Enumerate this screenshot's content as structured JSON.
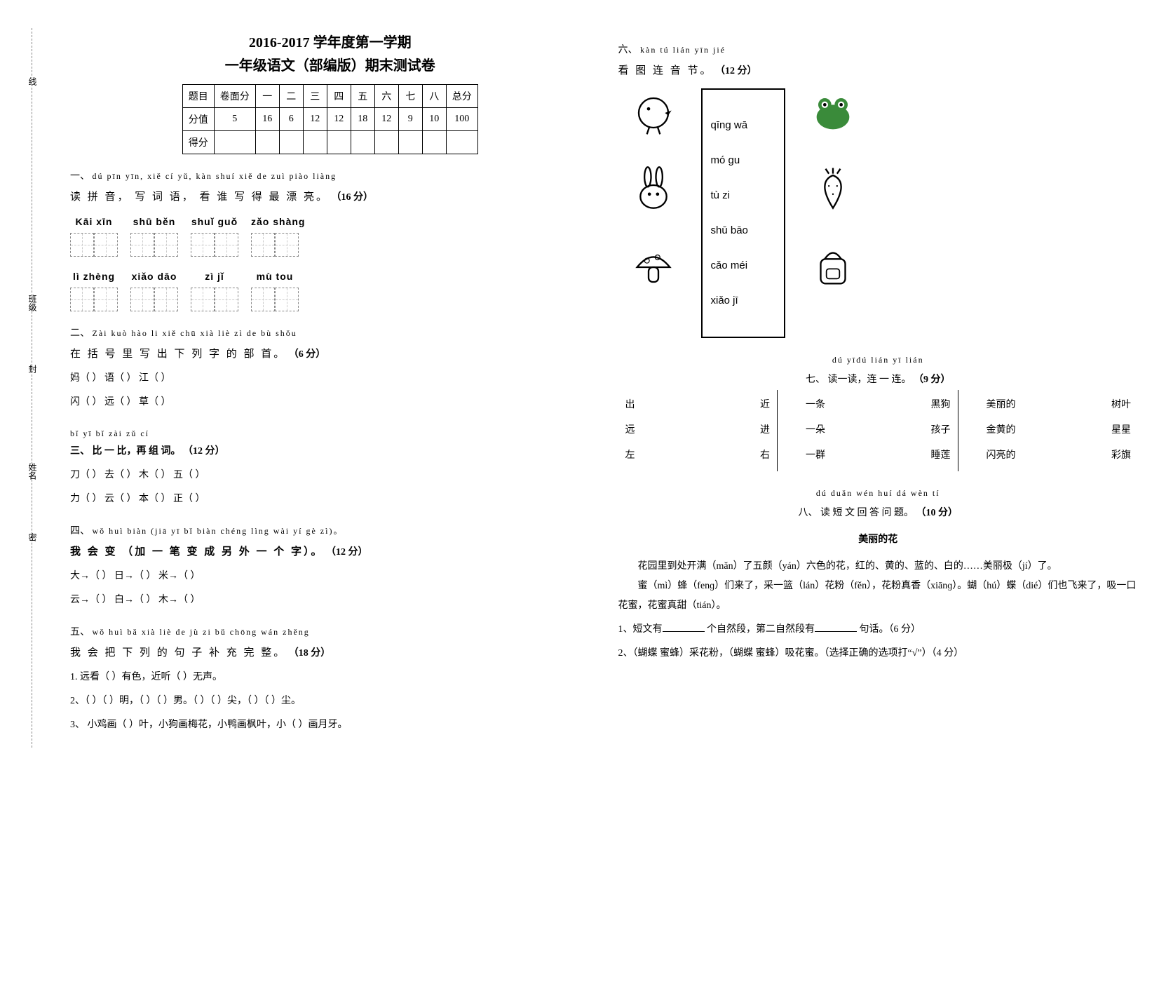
{
  "header": {
    "line1": "2016-2017 学年度第一学期",
    "line2": "一年级语文（部编版）期末测试卷"
  },
  "score_table": {
    "rows": [
      [
        "题目",
        "卷面分",
        "一",
        "二",
        "三",
        "四",
        "五",
        "六",
        "七",
        "八",
        "总分"
      ],
      [
        "分值",
        "5",
        "16",
        "6",
        "12",
        "12",
        "18",
        "12",
        "9",
        "10",
        "100"
      ],
      [
        "得分",
        "",
        "",
        "",
        "",
        "",
        "",
        "",
        "",
        "",
        ""
      ]
    ]
  },
  "binding_labels": {
    "top": "线",
    "mid": "封",
    "low": "密",
    "class": "班级",
    "name": "姓名"
  },
  "s1": {
    "num": "一、",
    "pinyin": "dú pīn yīn, xiě cí yǔ, kàn shuí xiě de zuì piào liàng",
    "zh": "读 拼 音，  写 词 语，  看 谁  写 得  最   漂    亮。",
    "pts": "（16 分）",
    "row1": [
      {
        "py": "Kāi  xīn",
        "n": 2
      },
      {
        "py": "shū  běn",
        "n": 2
      },
      {
        "py": "shuǐ guǒ",
        "n": 2
      },
      {
        "py": "zǎo  shàng",
        "n": 2
      }
    ],
    "row2": [
      {
        "py": "lì  zhèng",
        "n": 2
      },
      {
        "py": "xiǎo  dāo",
        "n": 2
      },
      {
        "py": "zì  jǐ",
        "n": 2
      },
      {
        "py": "mù  tou",
        "n": 2
      }
    ]
  },
  "s2": {
    "num": "二、",
    "pinyin": "Zài kuò hào li xiě chū xià liè zì de bù shǒu",
    "zh": "在 括 号 里 写 出 下 列 字 的 部 首。",
    "pts": "（6 分）",
    "lines": [
      "妈（    ）      语（    ）      江（    ）",
      "闪（    ）      远（    ）      草（    ）"
    ]
  },
  "s3": {
    "pinyin": "bǐ yī bǐ  zài zǔ cí",
    "num": "三、",
    "zh": "比 一 比，再 组 词。",
    "pts": "（12 分）",
    "lines": [
      "刀（          ）   去（          ）   木（          ）   五（          ）",
      "力（          ）   云（          ）   本（          ）   正（          ）"
    ]
  },
  "s4": {
    "num": "四、",
    "pinyin": "wǒ huì biàn (jiā yī bǐ biàn chéng lìng wài yí gè zì)。",
    "zh": "我 会 变 （加 一 笔 变 成 另 外 一 个 字）。",
    "pts": "（12 分）",
    "lines": [
      "大→（      ）    日→（      ）    米→（      ）",
      "云→（      ）    白→（      ）    木→（      ）"
    ]
  },
  "s5": {
    "num": "五、",
    "pinyin": "wǒ huì bǎ xià liè de jù zi bǔ chōng wán zhěng",
    "zh": "我 会 把 下 列 的 句 子 补 充 完 整。",
    "pts": "（18 分）",
    "lines": [
      "1. 远看（      ）有色，近听（      ）无声。",
      "2、（  ）（  ）明，（  ）（  ）男。（  ）（  ）尖，（  ）（  ）尘。",
      "3、  小鸡画（  ）叶，小狗画梅花，小鸭画枫叶，小（  ）画月牙。"
    ]
  },
  "s6": {
    "num": "六、",
    "pinyin": "kàn tú lián yīn jié",
    "zh": "看 图 连 音 节。",
    "pts": "（12 分）",
    "words": [
      "qīng wā",
      "mó gu",
      "tù zi",
      "shū bāo",
      "cǎo méi",
      "xiǎo jī"
    ]
  },
  "s7": {
    "num": "七、",
    "pinyin": "dú yīdú  lián yī lián",
    "zh": "读一读，连 一 连。",
    "pts": "（9 分）",
    "c1": [
      [
        "出",
        "近"
      ],
      [
        "远",
        "进"
      ],
      [
        "左",
        "右"
      ]
    ],
    "c2": [
      [
        "一条",
        "黑狗"
      ],
      [
        "一朵",
        "孩子"
      ],
      [
        "一群",
        "睡莲"
      ]
    ],
    "c3": [
      [
        "美丽的",
        "树叶"
      ],
      [
        "金黄的",
        "星星"
      ],
      [
        "闪亮的",
        "彩旗"
      ]
    ]
  },
  "s8": {
    "num": "八、",
    "pinyin": "dú duǎn wén huí dá wèn tí",
    "zh": "读 短 文 回 答 问 题。",
    "pts": "（10 分）",
    "title": "美丽的花",
    "p1": "花园里到处开满（mǎn）了五颜（yán）六色的花，红的、黄的、蓝的、白的……美丽极（jí）了。",
    "p2": "蜜（mì）蜂（fenɡ）们来了，采一篮（lán）花粉（fěn），花粉真香（xiānɡ）。蝴（hú）蝶（dié）们也飞来了，吸一口花蜜，花蜜真甜（tián）。",
    "q1a": "1、短文有",
    "q1b": "个自然段，第二自然段有",
    "q1c": "句话。（6 分）",
    "q2": "2、（蝴蝶    蜜蜂）采花粉，（蝴蝶    蜜蜂）吸花蜜。（选择正确的选项打“√”）（4 分）"
  }
}
